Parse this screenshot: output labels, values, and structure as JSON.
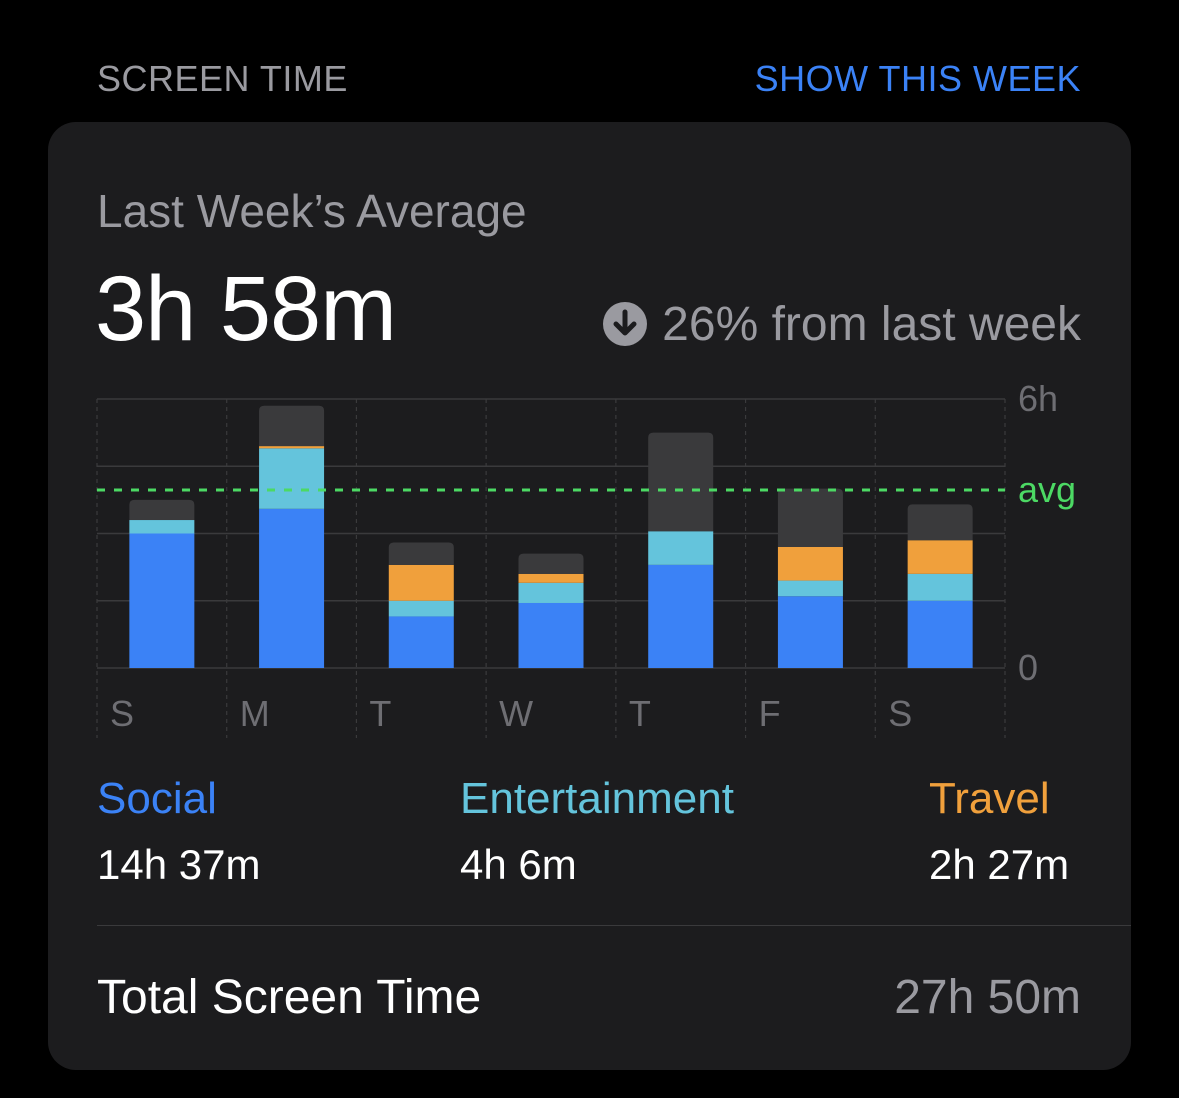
{
  "section": {
    "title": "SCREEN TIME",
    "action": "SHOW THIS WEEK"
  },
  "summary": {
    "label": "Last Week’s Average",
    "value": "3h 58m",
    "change_text": "26% from last week",
    "change_icon": "arrow-down-circle-icon"
  },
  "chart_data": {
    "type": "bar",
    "stacked": true,
    "categories": [
      "S",
      "M",
      "T",
      "W",
      "T",
      "F",
      "S"
    ],
    "series": [
      {
        "name": "Social",
        "color": "#3b82f6",
        "values": [
          3.0,
          3.55,
          1.15,
          1.45,
          2.3,
          1.6,
          1.5
        ]
      },
      {
        "name": "Entertainment",
        "color": "#64c4dc",
        "values": [
          0.3,
          1.35,
          0.35,
          0.45,
          0.75,
          0.35,
          0.6
        ]
      },
      {
        "name": "Travel",
        "color": "#f0a03c",
        "values": [
          0,
          0.05,
          0.8,
          0.2,
          0,
          0.75,
          0.75
        ]
      },
      {
        "name": "Other",
        "color": "#3a3a3c",
        "values": [
          0.45,
          0.9,
          0.5,
          0.45,
          2.2,
          1.3,
          0.8
        ]
      }
    ],
    "ylim": [
      0,
      6
    ],
    "yticks": [
      0,
      1.5,
      3,
      4.5,
      6
    ],
    "ytick_labels": {
      "0": "0",
      "6": "6h"
    },
    "average": 3.97,
    "average_label": "avg",
    "average_color": "#4cd964",
    "grid": true
  },
  "legend": [
    {
      "name": "Social",
      "value": "14h 37m",
      "color": "#3b82f6"
    },
    {
      "name": "Entertainment",
      "value": "4h 6m",
      "color": "#64c4dc"
    },
    {
      "name": "Travel",
      "value": "2h 27m",
      "color": "#f0a03c"
    }
  ],
  "total": {
    "label": "Total Screen Time",
    "value": "27h 50m"
  }
}
